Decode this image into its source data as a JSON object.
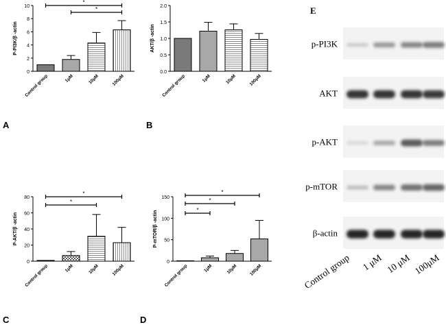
{
  "panel_letters": {
    "a": "A",
    "b": "B",
    "c": "C",
    "d": "D",
    "e": "E"
  },
  "chart_data": [
    {
      "panel": "A",
      "type": "bar",
      "categories": [
        "Control group",
        "1μM",
        "10μM",
        "100μM"
      ],
      "values": [
        1.0,
        1.8,
        4.3,
        6.3
      ],
      "errors": [
        0,
        0.6,
        1.6,
        1.4
      ],
      "patterns": [
        "solid",
        "solid-light",
        "hstripe",
        "vstripe"
      ],
      "ylabel": "P-PI3K/β -actin",
      "ylim": [
        0,
        10
      ],
      "yticks": [
        0,
        2,
        4,
        6,
        8,
        10
      ],
      "significance": [
        {
          "from": 0,
          "to": 3,
          "label": "*"
        },
        {
          "from": 1,
          "to": 3,
          "label": "*"
        }
      ]
    },
    {
      "panel": "B",
      "type": "bar",
      "categories": [
        "Control group",
        "1μM",
        "10μM",
        "100μM"
      ],
      "values": [
        1.0,
        1.22,
        1.26,
        0.97
      ],
      "errors": [
        0,
        0.27,
        0.18,
        0.18
      ],
      "patterns": [
        "solid",
        "solid-light",
        "hstripe",
        "hstripe"
      ],
      "ylabel": "AKT/β -actin",
      "ylim": [
        0,
        2.0
      ],
      "yticks": [
        "0.0",
        "0.5",
        "1.0",
        "1.5",
        "2.0"
      ],
      "significance": []
    },
    {
      "panel": "C",
      "type": "bar",
      "categories": [
        "Control group",
        "1μM",
        "10μM",
        "100μM"
      ],
      "values": [
        1.0,
        7.0,
        31.0,
        23.0
      ],
      "errors": [
        0,
        5.0,
        27.0,
        19.0
      ],
      "patterns": [
        "solid",
        "checker",
        "hstripe",
        "vstripe"
      ],
      "ylabel": "P-AKT/β -actin",
      "ylim": [
        0,
        80
      ],
      "yticks": [
        0,
        20,
        40,
        60,
        80
      ],
      "significance": [
        {
          "from": 0,
          "to": 3,
          "label": "*"
        },
        {
          "from": 0,
          "to": 2,
          "label": "*"
        }
      ]
    },
    {
      "panel": "D",
      "type": "bar",
      "categories": [
        "Control group",
        "1μM",
        "10μM",
        "100μM"
      ],
      "values": [
        1.0,
        8.0,
        18.0,
        52.0
      ],
      "errors": [
        0,
        4.0,
        7.0,
        43.0
      ],
      "patterns": [
        "solid",
        "solid-light",
        "solid-light",
        "solid-light"
      ],
      "ylabel": "P-mTOR/β -actin",
      "ylim": [
        0,
        150
      ],
      "yticks": [
        0,
        50,
        100,
        150
      ],
      "significance": [
        {
          "from": 0,
          "to": 3,
          "label": "*"
        },
        {
          "from": 0,
          "to": 2,
          "label": "*"
        },
        {
          "from": 0,
          "to": 1,
          "label": "*"
        }
      ]
    }
  ],
  "blot": {
    "bands": [
      {
        "label": "p-PI3K",
        "intensities": [
          0.2,
          0.42,
          0.5,
          0.55
        ]
      },
      {
        "label": "AKT",
        "intensities": [
          0.88,
          0.88,
          0.88,
          0.85
        ]
      },
      {
        "label": "p-AKT",
        "intensities": [
          0.14,
          0.36,
          0.7,
          0.55
        ]
      },
      {
        "label": "p-mTOR",
        "intensities": [
          0.26,
          0.5,
          0.6,
          0.65
        ]
      },
      {
        "label": "β-actin",
        "intensities": [
          0.95,
          0.95,
          0.95,
          0.95
        ]
      }
    ],
    "lanes": [
      "Control group",
      "1 μM",
      "10 μM",
      "100μM"
    ]
  },
  "colors": {
    "bar_dark": "#7a7a7a",
    "bar_light": "#a8a8a8",
    "ink": "#000000",
    "band": "#1a1a1a",
    "membrane": "#f3f3f3"
  }
}
